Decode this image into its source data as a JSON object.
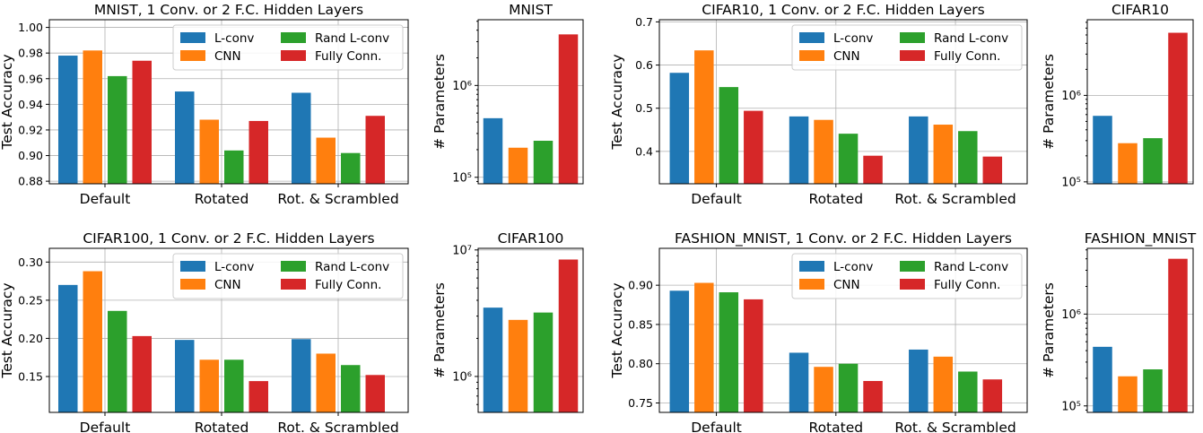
{
  "colors": {
    "lconv": "#1f77b4",
    "cnn": "#ff7f0e",
    "rand": "#2ca02c",
    "fc": "#d62728"
  },
  "legend_labels": [
    "L-conv",
    "CNN",
    "Rand L-conv",
    "Fully Conn."
  ],
  "chart_data": [
    {
      "type": "bar",
      "id": "acc-mnist",
      "title": "MNIST, 1 Conv. or 2 F.C. Hidden Layers",
      "ylabel": "Test Accuracy",
      "xlabel": "",
      "categories": [
        "Default",
        "Rotated",
        "Rot. & Scrambled"
      ],
      "ylim": [
        0.878,
        1.006
      ],
      "yticks": [
        0.88,
        0.9,
        0.92,
        0.94,
        0.96,
        0.98,
        1.0
      ],
      "ytick_labels": [
        "0.88",
        "0.90",
        "0.92",
        "0.94",
        "0.96",
        "0.98",
        "1.00"
      ],
      "legend": "top-right",
      "grid": true,
      "series": [
        {
          "name": "L-conv",
          "values": [
            0.978,
            0.95,
            0.949
          ]
        },
        {
          "name": "CNN",
          "values": [
            0.982,
            0.928,
            0.914
          ]
        },
        {
          "name": "Rand L-conv",
          "values": [
            0.962,
            0.904,
            0.902
          ]
        },
        {
          "name": "Fully Conn.",
          "values": [
            0.974,
            0.927,
            0.931
          ]
        }
      ]
    },
    {
      "type": "bar",
      "id": "params-mnist",
      "scale": "log",
      "title": "MNIST",
      "ylabel": "# Parameters",
      "ylim": [
        85000,
        5200000
      ],
      "yticks": [
        100000,
        1000000
      ],
      "ytick_labels": [
        "10⁵",
        "10⁶"
      ],
      "grid": true,
      "series": [
        {
          "name": "L-conv",
          "values": [
            440000
          ]
        },
        {
          "name": "CNN",
          "values": [
            210000
          ]
        },
        {
          "name": "Rand L-conv",
          "values": [
            250000
          ]
        },
        {
          "name": "Fully Conn.",
          "values": [
            3600000
          ]
        }
      ]
    },
    {
      "type": "bar",
      "id": "acc-cifar10",
      "title": "CIFAR10, 1 Conv. or 2 F.C. Hidden Layers",
      "ylabel": "Test Accuracy",
      "xlabel": "",
      "categories": [
        "Default",
        "Rotated",
        "Rot. & Scrambled"
      ],
      "ylim": [
        0.325,
        0.705
      ],
      "yticks": [
        0.4,
        0.5,
        0.6,
        0.7
      ],
      "ytick_labels": [
        "0.4",
        "0.5",
        "0.6",
        "0.7"
      ],
      "legend": "top-right",
      "grid": true,
      "series": [
        {
          "name": "L-conv",
          "values": [
            0.582,
            0.481,
            0.481
          ]
        },
        {
          "name": "CNN",
          "values": [
            0.634,
            0.473,
            0.462
          ]
        },
        {
          "name": "Rand L-conv",
          "values": [
            0.549,
            0.441,
            0.447
          ]
        },
        {
          "name": "Fully Conn.",
          "values": [
            0.494,
            0.39,
            0.388
          ]
        }
      ]
    },
    {
      "type": "bar",
      "id": "params-cifar10",
      "scale": "log",
      "title": "CIFAR10",
      "ylabel": "# Parameters",
      "ylim": [
        95000,
        7500000
      ],
      "yticks": [
        100000,
        1000000
      ],
      "ytick_labels": [
        "10⁵",
        "10⁶"
      ],
      "grid": true,
      "series": [
        {
          "name": "L-conv",
          "values": [
            580000
          ]
        },
        {
          "name": "CNN",
          "values": [
            280000
          ]
        },
        {
          "name": "Rand L-conv",
          "values": [
            320000
          ]
        },
        {
          "name": "Fully Conn.",
          "values": [
            5300000
          ]
        }
      ]
    },
    {
      "type": "bar",
      "id": "acc-cifar100",
      "title": "CIFAR100, 1 Conv. or 2 F.C. Hidden Layers",
      "ylabel": "Test Accuracy",
      "xlabel": "",
      "categories": [
        "Default",
        "Rotated",
        "Rot. & Scrambled"
      ],
      "ylim": [
        0.103,
        0.318
      ],
      "yticks": [
        0.15,
        0.2,
        0.25,
        0.3
      ],
      "ytick_labels": [
        "0.15",
        "0.20",
        "0.25",
        "0.30"
      ],
      "legend": "top-right",
      "grid": true,
      "series": [
        {
          "name": "L-conv",
          "values": [
            0.27,
            0.198,
            0.199
          ]
        },
        {
          "name": "CNN",
          "values": [
            0.288,
            0.172,
            0.18
          ]
        },
        {
          "name": "Rand L-conv",
          "values": [
            0.236,
            0.172,
            0.165
          ]
        },
        {
          "name": "Fully Conn.",
          "values": [
            0.203,
            0.144,
            0.152
          ]
        }
      ]
    },
    {
      "type": "bar",
      "id": "params-cifar100",
      "scale": "log",
      "title": "CIFAR100",
      "ylabel": "# Parameters",
      "ylim": [
        520000,
        10300000
      ],
      "yticks": [
        1000000,
        10000000
      ],
      "ytick_labels": [
        "10⁶",
        "10⁷"
      ],
      "grid": true,
      "series": [
        {
          "name": "L-conv",
          "values": [
            3500000
          ]
        },
        {
          "name": "CNN",
          "values": [
            2800000
          ]
        },
        {
          "name": "Rand L-conv",
          "values": [
            3200000
          ]
        },
        {
          "name": "Fully Conn.",
          "values": [
            8400000
          ]
        }
      ]
    },
    {
      "type": "bar",
      "id": "acc-fashion",
      "title": "FASHION_MNIST, 1 Conv. or 2 F.C. Hidden Layers",
      "ylabel": "Test Accuracy",
      "xlabel": "",
      "categories": [
        "Default",
        "Rotated",
        "Rot. & Scrambled"
      ],
      "ylim": [
        0.738,
        0.947
      ],
      "yticks": [
        0.75,
        0.8,
        0.85,
        0.9
      ],
      "ytick_labels": [
        "0.75",
        "0.80",
        "0.85",
        "0.90"
      ],
      "legend": "top-right",
      "grid": true,
      "series": [
        {
          "name": "L-conv",
          "values": [
            0.893,
            0.814,
            0.818
          ]
        },
        {
          "name": "CNN",
          "values": [
            0.903,
            0.796,
            0.809
          ]
        },
        {
          "name": "Rand L-conv",
          "values": [
            0.891,
            0.8,
            0.79
          ]
        },
        {
          "name": "Fully Conn.",
          "values": [
            0.882,
            0.778,
            0.78
          ]
        }
      ]
    },
    {
      "type": "bar",
      "id": "params-fashion",
      "scale": "log",
      "title": "FASHION_MNIST",
      "ylabel": "# Parameters",
      "ylim": [
        85000,
        5200000
      ],
      "yticks": [
        100000,
        1000000
      ],
      "ytick_labels": [
        "10⁵",
        "10⁶"
      ],
      "grid": true,
      "series": [
        {
          "name": "L-conv",
          "values": [
            440000
          ]
        },
        {
          "name": "CNN",
          "values": [
            210000
          ]
        },
        {
          "name": "Rand L-conv",
          "values": [
            250000
          ]
        },
        {
          "name": "Fully Conn.",
          "values": [
            4000000
          ]
        }
      ]
    }
  ]
}
